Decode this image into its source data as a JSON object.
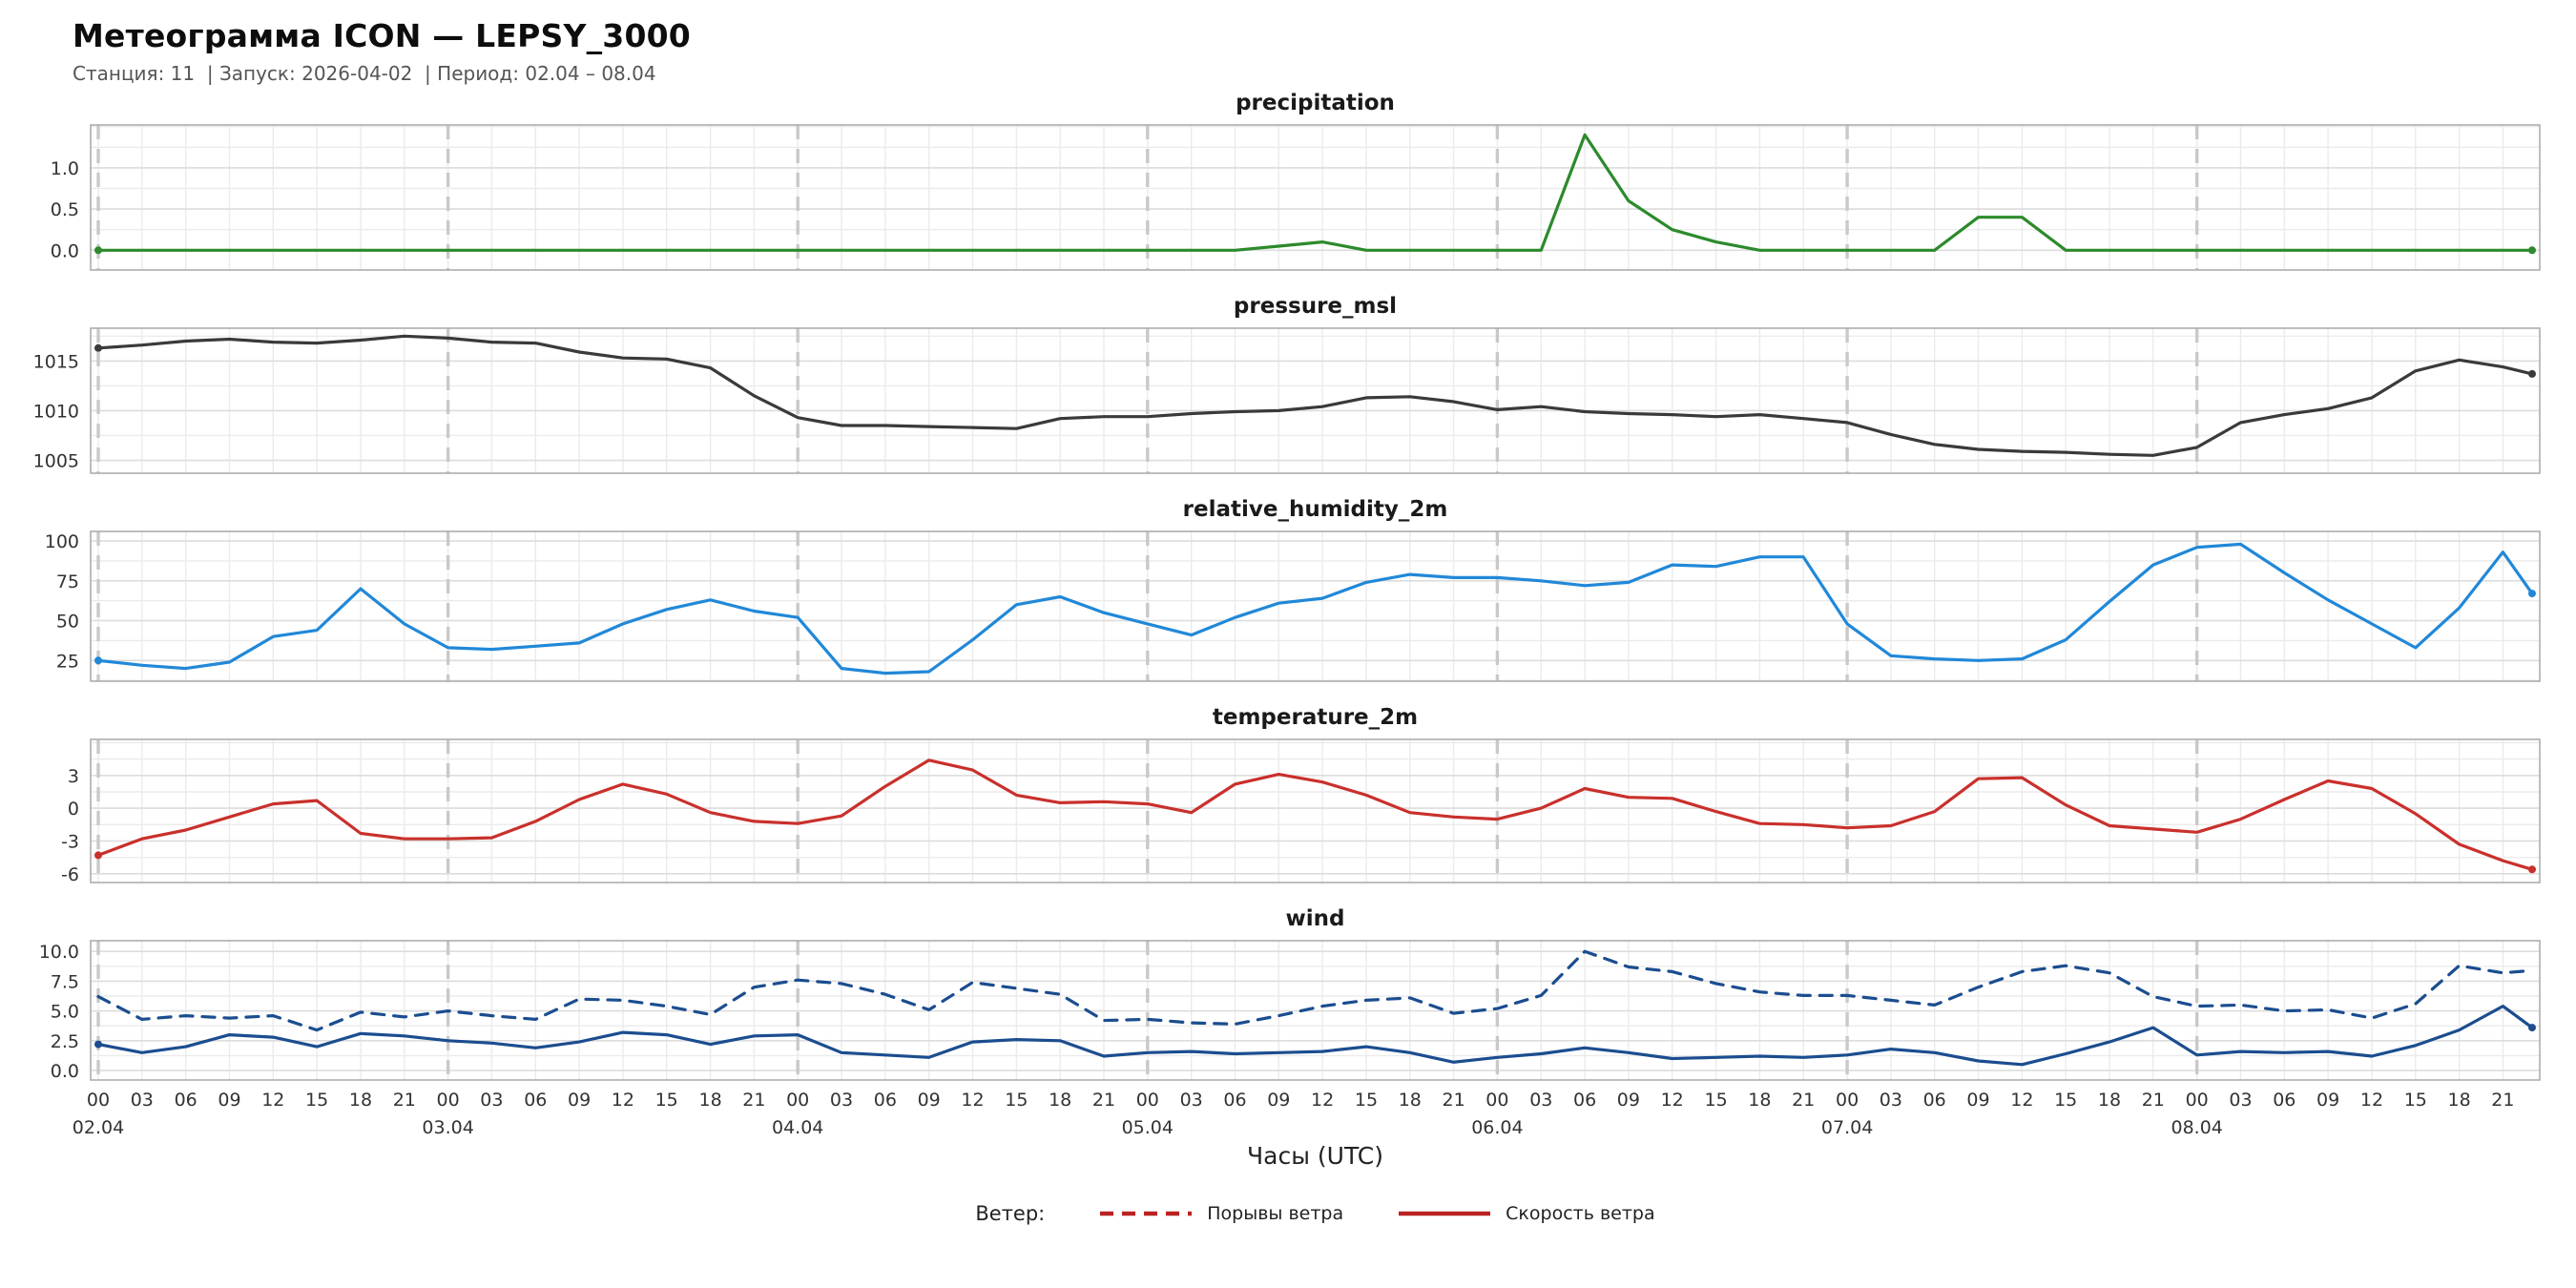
{
  "header": {
    "title": "Метеограмма ICON — LEPSY_3000",
    "subtitle": "Станция: 11  | Запуск: 2026-04-02  | Период: 02.04 – 08.04"
  },
  "axis": {
    "xlabel": "Часы (UTC)",
    "hour_tick_step": 3,
    "hour_tick_labels": [
      "00",
      "03",
      "06",
      "09",
      "12",
      "15",
      "18",
      "21"
    ],
    "day_labels": [
      {
        "hour": 0,
        "label": "02.04"
      },
      {
        "hour": 24,
        "label": "03.04"
      },
      {
        "hour": 48,
        "label": "04.04"
      },
      {
        "hour": 72,
        "label": "05.04"
      },
      {
        "hour": 96,
        "label": "06.04"
      },
      {
        "hour": 120,
        "label": "07.04"
      },
      {
        "hour": 144,
        "label": "08.04"
      }
    ]
  },
  "legend": {
    "label": "Ветер:",
    "items": [
      {
        "name": "Порывы ветра",
        "style": "dashed",
        "color": "#bb2222"
      },
      {
        "name": "Скорость ветра",
        "style": "solid",
        "color": "#bb2222"
      }
    ]
  },
  "grid_colors": {
    "minor": "#ebebeb",
    "major": "#dddddd",
    "day_line": "#c9c9c9",
    "border": "#adadad"
  },
  "chart_data": [
    {
      "type": "line",
      "title": "precipitation",
      "x_start_hour": 0,
      "x_step_hours": 3,
      "x_end_hour": 167,
      "yticks": [
        0.0,
        0.5,
        1.0
      ],
      "ytick_format": "1dp",
      "ylim": [
        -0.24,
        1.52
      ],
      "y_minor": 0.25,
      "series": [
        {
          "name": "precipitation",
          "color": "#2c8a2c",
          "dash": false,
          "values": [
            0,
            0,
            0,
            0,
            0,
            0,
            0,
            0,
            0,
            0,
            0,
            0,
            0,
            0,
            0,
            0,
            0,
            0,
            0,
            0,
            0,
            0,
            0,
            0,
            0,
            0,
            0,
            0.05,
            0.1,
            0,
            0,
            0,
            0,
            0,
            1.4,
            0.6,
            0.25,
            0.1,
            0,
            0,
            0,
            0,
            0,
            0.4,
            0.4,
            0,
            0,
            0,
            0,
            0,
            0,
            0,
            0,
            0,
            0,
            0,
            0
          ]
        }
      ]
    },
    {
      "type": "line",
      "title": "pressure_msl",
      "x_start_hour": 0,
      "x_step_hours": 3,
      "x_end_hour": 167,
      "yticks": [
        1005,
        1010,
        1015
      ],
      "ytick_format": "int",
      "ylim": [
        1003.7,
        1018.3
      ],
      "y_minor": 2.5,
      "series": [
        {
          "name": "pressure_msl",
          "color": "#3a3a3a",
          "dash": false,
          "values": [
            1016.3,
            1016.6,
            1017.0,
            1017.2,
            1016.9,
            1016.8,
            1017.1,
            1017.5,
            1017.3,
            1016.9,
            1016.8,
            1015.9,
            1015.3,
            1015.2,
            1014.3,
            1011.5,
            1009.3,
            1008.5,
            1008.5,
            1008.4,
            1008.3,
            1008.2,
            1009.2,
            1009.4,
            1009.4,
            1009.7,
            1009.9,
            1010.0,
            1010.4,
            1011.3,
            1011.4,
            1010.9,
            1010.1,
            1010.4,
            1009.9,
            1009.7,
            1009.6,
            1009.4,
            1009.6,
            1009.2,
            1008.8,
            1007.6,
            1006.6,
            1006.1,
            1005.9,
            1005.8,
            1005.6,
            1005.5,
            1006.3,
            1008.8,
            1009.6,
            1010.2,
            1011.3,
            1014.0,
            1015.1,
            1014.4,
            1013.7
          ]
        }
      ]
    },
    {
      "type": "line",
      "title": "relative_humidity_2m",
      "x_start_hour": 0,
      "x_step_hours": 3,
      "x_end_hour": 167,
      "yticks": [
        25,
        50,
        75,
        100
      ],
      "ytick_format": "int",
      "ylim": [
        12,
        106
      ],
      "y_minor": 12.5,
      "series": [
        {
          "name": "relative_humidity_2m",
          "color": "#2188d8",
          "dash": false,
          "values": [
            25,
            22,
            20,
            24,
            40,
            44,
            70,
            48,
            33,
            32,
            34,
            36,
            48,
            57,
            63,
            56,
            52,
            20,
            17,
            18,
            38,
            60,
            65,
            55,
            48,
            41,
            52,
            61,
            64,
            74,
            79,
            77,
            77,
            75,
            72,
            74,
            85,
            84,
            90,
            90,
            48,
            28,
            26,
            25,
            26,
            38,
            62,
            85,
            96,
            98,
            80,
            63,
            48,
            33,
            58,
            93,
            67
          ]
        }
      ]
    },
    {
      "type": "line",
      "title": "temperature_2m",
      "x_start_hour": 0,
      "x_step_hours": 3,
      "x_end_hour": 167,
      "yticks": [
        -6,
        -3,
        0,
        3
      ],
      "ytick_format": "int",
      "ylim": [
        -6.8,
        6.3
      ],
      "y_minor": 1.5,
      "series": [
        {
          "name": "temperature_2m",
          "color": "#c9302c",
          "dash": false,
          "values": [
            -4.3,
            -2.8,
            -2.0,
            -0.8,
            0.4,
            0.7,
            -2.3,
            -2.8,
            -2.8,
            -2.7,
            -1.2,
            0.8,
            2.2,
            1.3,
            -0.4,
            -1.2,
            -1.4,
            -0.7,
            2.0,
            4.4,
            3.5,
            1.2,
            0.5,
            0.6,
            0.4,
            -0.4,
            2.2,
            3.1,
            2.4,
            1.2,
            -0.4,
            -0.8,
            -1.0,
            0.0,
            1.8,
            1.0,
            0.9,
            -0.3,
            -1.4,
            -1.5,
            -1.8,
            -1.6,
            -0.3,
            2.7,
            2.8,
            0.3,
            -1.6,
            -1.9,
            -2.2,
            -1.0,
            0.8,
            2.5,
            1.8,
            -0.5,
            -3.3,
            -4.8,
            -5.6
          ]
        }
      ]
    },
    {
      "type": "line",
      "title": "wind",
      "x_start_hour": 0,
      "x_step_hours": 3,
      "x_end_hour": 167,
      "yticks": [
        0.0,
        2.5,
        5.0,
        7.5,
        10.0
      ],
      "ytick_format": "1dp",
      "ylim": [
        -0.8,
        10.9
      ],
      "y_minor": 1.25,
      "series": [
        {
          "name": "Порывы ветра",
          "color": "#1b4d8f",
          "dash": true,
          "values": [
            6.2,
            4.3,
            4.6,
            4.4,
            4.6,
            3.4,
            4.9,
            4.5,
            5.0,
            4.6,
            4.3,
            6.0,
            5.9,
            5.4,
            4.7,
            7.0,
            7.6,
            7.3,
            6.4,
            5.1,
            7.4,
            6.9,
            6.4,
            4.2,
            4.3,
            4.0,
            3.9,
            4.6,
            5.4,
            5.9,
            6.1,
            4.8,
            5.2,
            6.3,
            10.0,
            8.7,
            8.3,
            7.3,
            6.6,
            6.3,
            6.3,
            5.9,
            5.5,
            7.0,
            8.3,
            8.8,
            8.2,
            6.2,
            5.4,
            5.5,
            5.0,
            5.1,
            4.4,
            5.6,
            8.8,
            8.2,
            8.4
          ]
        },
        {
          "name": "Скорость ветра",
          "color": "#1b4d8f",
          "dash": false,
          "values": [
            2.2,
            1.5,
            2.0,
            3.0,
            2.8,
            2.0,
            3.1,
            2.9,
            2.5,
            2.3,
            1.9,
            2.4,
            3.2,
            3.0,
            2.2,
            2.9,
            3.0,
            1.5,
            1.3,
            1.1,
            2.4,
            2.6,
            2.5,
            1.2,
            1.5,
            1.6,
            1.4,
            1.5,
            1.6,
            2.0,
            1.5,
            0.7,
            1.1,
            1.4,
            1.9,
            1.5,
            1.0,
            1.1,
            1.2,
            1.1,
            1.3,
            1.8,
            1.5,
            0.8,
            0.5,
            1.4,
            2.4,
            3.6,
            1.3,
            1.6,
            1.5,
            1.6,
            1.2,
            2.1,
            3.4,
            5.4,
            3.6
          ]
        }
      ]
    }
  ]
}
